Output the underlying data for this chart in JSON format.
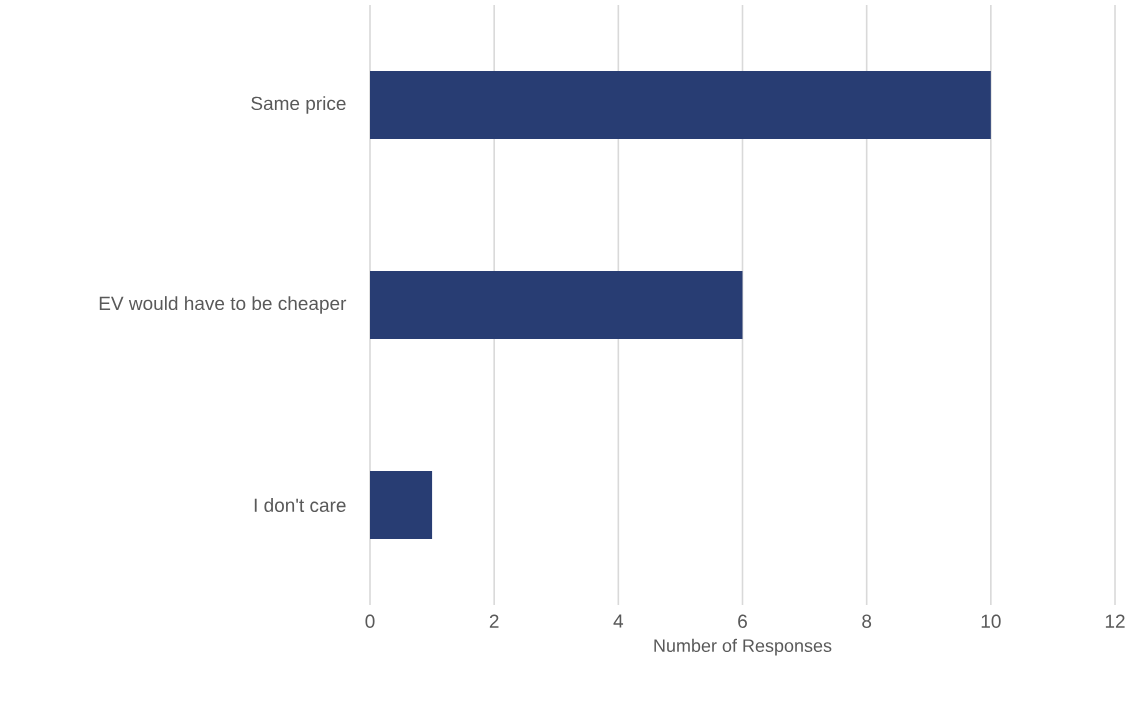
{
  "chart_data": {
    "type": "bar",
    "orientation": "horizontal",
    "categories": [
      "Same price",
      "EV would have to be cheaper",
      "I don't care"
    ],
    "values": [
      10,
      6,
      1
    ],
    "color": "#283d73",
    "xlim": [
      0,
      12
    ],
    "xticks": [
      0,
      2,
      4,
      6,
      8,
      10,
      12
    ],
    "xlabel": "Number of Responses",
    "grid": "x"
  }
}
